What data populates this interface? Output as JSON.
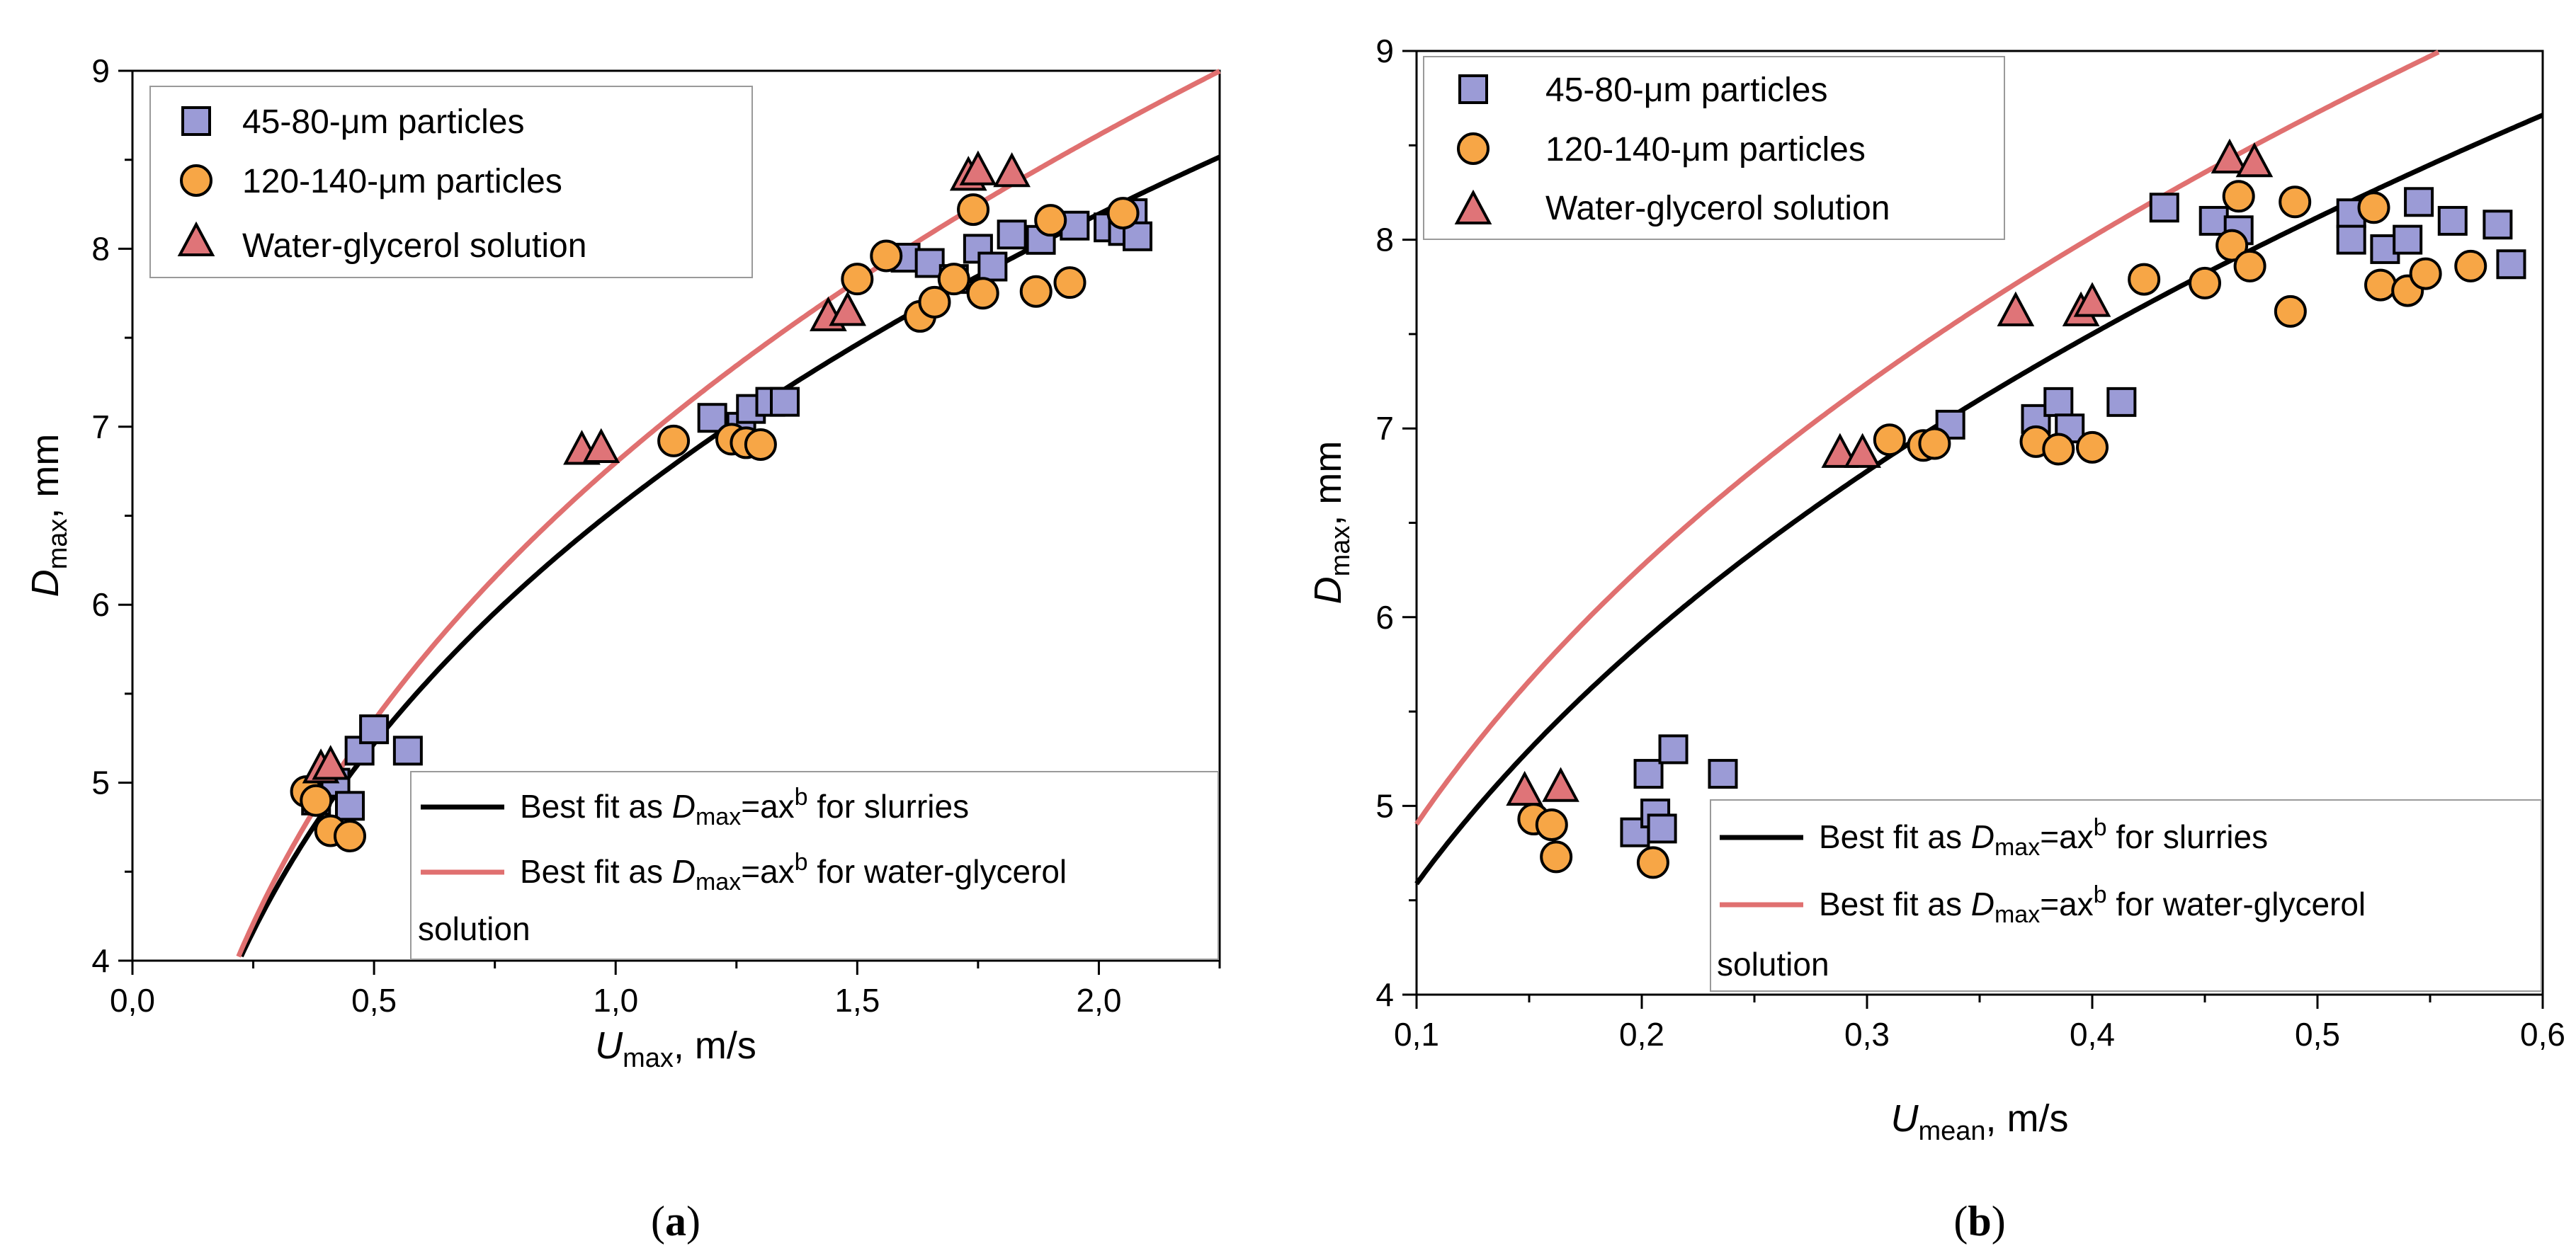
{
  "colors": {
    "square": "#9b9bd6",
    "circle": "#f7a646",
    "triangle": "#df7478",
    "fit_slurry": "#000000",
    "fit_glycerol": "#e07070"
  },
  "chart_data": [
    {
      "type": "scatter",
      "panel_label": "(a)",
      "panel_letter": "a",
      "xlabel_main": "U",
      "xlabel_sub": "max",
      "xlabel_rest": ", m/s",
      "ylabel_main": "D",
      "ylabel_sub": "max",
      "ylabel_rest": ", mm",
      "xlim": [
        0.0,
        2.25
      ],
      "ylim": [
        4,
        9
      ],
      "xticks": [
        0.0,
        0.5,
        1.0,
        1.5,
        2.0
      ],
      "xtick_labels": [
        "0,0",
        "0,5",
        "1,0",
        "1,5",
        "2,0"
      ],
      "yticks": [
        4,
        5,
        6,
        7,
        8,
        9
      ],
      "ytick_labels": [
        "4",
        "5",
        "6",
        "7",
        "8",
        "9"
      ],
      "legend_location": "top-left",
      "fit_legend_location": "lower-right",
      "series": [
        {
          "name": "45-80-μm particles",
          "name_pre": "45-80-",
          "name_mu": "μ",
          "name_post": "m particles",
          "marker": "square",
          "points": [
            [
              0.38,
              4.9
            ],
            [
              0.42,
              5.0
            ],
            [
              0.45,
              4.87
            ],
            [
              0.47,
              5.18
            ],
            [
              0.5,
              5.3
            ],
            [
              0.57,
              5.18
            ],
            [
              1.2,
              7.05
            ],
            [
              1.26,
              7.0
            ],
            [
              1.28,
              7.1
            ],
            [
              1.32,
              7.14
            ],
            [
              1.35,
              7.14
            ],
            [
              1.6,
              7.95
            ],
            [
              1.65,
              7.92
            ],
            [
              1.7,
              7.83
            ],
            [
              1.75,
              8.0
            ],
            [
              1.78,
              7.9
            ],
            [
              1.82,
              8.08
            ],
            [
              1.88,
              8.05
            ],
            [
              1.95,
              8.13
            ],
            [
              2.02,
              8.12
            ],
            [
              2.05,
              8.1
            ],
            [
              2.07,
              8.2
            ],
            [
              2.08,
              8.07
            ]
          ]
        },
        {
          "name": "120-140-μm particles",
          "name_pre": "120-140-",
          "name_mu": "μ",
          "name_post": "m particles",
          "marker": "circle",
          "points": [
            [
              0.36,
              4.95
            ],
            [
              0.38,
              4.9
            ],
            [
              0.41,
              4.73
            ],
            [
              0.45,
              4.7
            ],
            [
              1.12,
              6.92
            ],
            [
              1.24,
              6.93
            ],
            [
              1.27,
              6.91
            ],
            [
              1.3,
              6.9
            ],
            [
              1.5,
              7.83
            ],
            [
              1.56,
              7.96
            ],
            [
              1.63,
              7.62
            ],
            [
              1.66,
              7.7
            ],
            [
              1.7,
              7.83
            ],
            [
              1.74,
              8.22
            ],
            [
              1.76,
              7.75
            ],
            [
              1.87,
              7.76
            ],
            [
              1.9,
              8.16
            ],
            [
              1.94,
              7.81
            ],
            [
              2.05,
              8.2
            ]
          ]
        },
        {
          "name": "Water-glycerol solution",
          "marker": "triangle",
          "points": [
            [
              0.39,
              5.08
            ],
            [
              0.41,
              5.1
            ],
            [
              0.93,
              6.87
            ],
            [
              0.97,
              6.88
            ],
            [
              1.44,
              7.62
            ],
            [
              1.48,
              7.65
            ],
            [
              1.73,
              8.41
            ],
            [
              1.75,
              8.44
            ],
            [
              1.82,
              8.43
            ]
          ]
        }
      ],
      "fits": [
        {
          "label_pre": "Best fit as ",
          "label_var": "D",
          "label_sub": "max",
          "label_eq": "=ax",
          "label_sup": "b",
          "label_post": " for slurries",
          "a": 6.54,
          "b": 0.3255
        },
        {
          "label_pre": "Best fit as ",
          "label_var": "D",
          "label_sub": "max",
          "label_eq": "=ax",
          "label_sup": "b",
          "label_post": " for water-glycerol",
          "label_line2": "solution",
          "a": 6.798,
          "b": 0.3458
        }
      ]
    },
    {
      "type": "scatter",
      "panel_label": "(b)",
      "panel_letter": "b",
      "xlabel_main": "U",
      "xlabel_sub": "mean",
      "xlabel_rest": ", m/s",
      "ylabel_main": "D",
      "ylabel_sub": "max",
      "ylabel_rest": ", mm",
      "xlim": [
        0.1,
        0.6
      ],
      "ylim": [
        4,
        9
      ],
      "xticks": [
        0.1,
        0.2,
        0.3,
        0.4,
        0.5,
        0.6
      ],
      "xtick_labels": [
        "0,1",
        "0,2",
        "0,3",
        "0,4",
        "0,5",
        "0,6"
      ],
      "yticks": [
        4,
        5,
        6,
        7,
        8,
        9
      ],
      "ytick_labels": [
        "4",
        "5",
        "6",
        "7",
        "8",
        "9"
      ],
      "legend_location": "top-left",
      "fit_legend_location": "lower-right",
      "series": [
        {
          "name": "45-80-μm particles",
          "name_pre": "45-80-",
          "name_mu": "μ",
          "name_post": "m particles",
          "marker": "square",
          "points": [
            [
              0.197,
              4.86
            ],
            [
              0.203,
              5.17
            ],
            [
              0.206,
              4.96
            ],
            [
              0.209,
              4.88
            ],
            [
              0.214,
              5.3
            ],
            [
              0.236,
              5.17
            ],
            [
              0.337,
              7.02
            ],
            [
              0.375,
              7.05
            ],
            [
              0.385,
              7.14
            ],
            [
              0.39,
              7.0
            ],
            [
              0.413,
              7.14
            ],
            [
              0.432,
              8.17
            ],
            [
              0.454,
              8.1
            ],
            [
              0.465,
              8.05
            ],
            [
              0.515,
              8.14
            ],
            [
              0.515,
              8.0
            ],
            [
              0.53,
              7.95
            ],
            [
              0.54,
              8.0
            ],
            [
              0.545,
              8.2
            ],
            [
              0.56,
              8.1
            ],
            [
              0.58,
              8.08
            ],
            [
              0.586,
              7.87
            ]
          ]
        },
        {
          "name": "120-140-μm particles",
          "name_pre": "120-140-",
          "name_mu": "μ",
          "name_post": "m particles",
          "marker": "circle",
          "points": [
            [
              0.152,
              4.93
            ],
            [
              0.16,
              4.9
            ],
            [
              0.162,
              4.73
            ],
            [
              0.205,
              4.7
            ],
            [
              0.31,
              6.94
            ],
            [
              0.325,
              6.91
            ],
            [
              0.33,
              6.92
            ],
            [
              0.375,
              6.93
            ],
            [
              0.385,
              6.89
            ],
            [
              0.4,
              6.9
            ],
            [
              0.423,
              7.79
            ],
            [
              0.45,
              7.77
            ],
            [
              0.462,
              7.97
            ],
            [
              0.465,
              8.23
            ],
            [
              0.47,
              7.86
            ],
            [
              0.488,
              7.62
            ],
            [
              0.49,
              8.2
            ],
            [
              0.525,
              8.17
            ],
            [
              0.528,
              7.76
            ],
            [
              0.54,
              7.73
            ],
            [
              0.548,
              7.82
            ],
            [
              0.568,
              7.86
            ]
          ]
        },
        {
          "name": "Water-glycerol solution",
          "marker": "triangle",
          "points": [
            [
              0.148,
              5.08
            ],
            [
              0.164,
              5.1
            ],
            [
              0.288,
              6.87
            ],
            [
              0.298,
              6.87
            ],
            [
              0.366,
              7.62
            ],
            [
              0.395,
              7.62
            ],
            [
              0.4,
              7.67
            ],
            [
              0.461,
              8.43
            ],
            [
              0.472,
              8.41
            ]
          ]
        }
      ],
      "fits": [
        {
          "label_pre": "Best fit as ",
          "label_var": "D",
          "label_sub": "max",
          "label_eq": "=ax",
          "label_sup": "b",
          "label_post": " for slurries",
          "a": 10.38,
          "b": 0.3546
        },
        {
          "label_pre": "Best fit as ",
          "label_var": "D",
          "label_sub": "max",
          "label_eq": "=ax",
          "label_sup": "b",
          "label_post": " for water-glycerol",
          "label_line2": "solution",
          "a": 11.09,
          "b": 0.3544
        }
      ]
    }
  ]
}
